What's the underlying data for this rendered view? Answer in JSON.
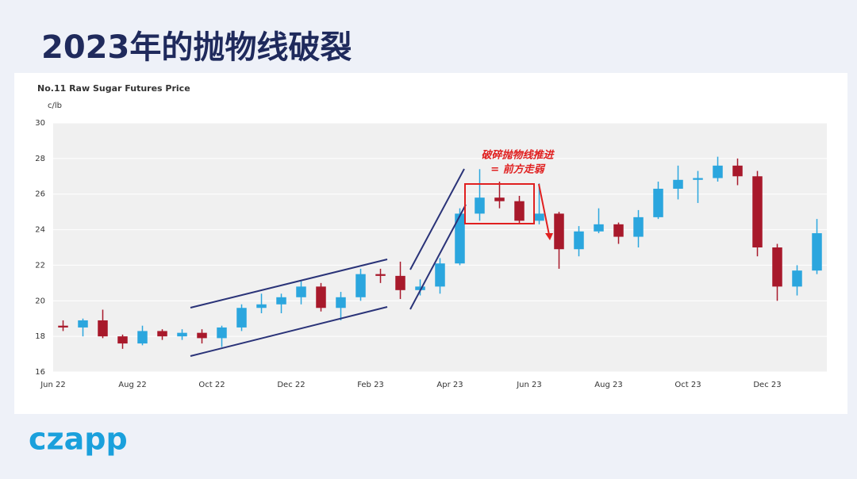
{
  "slide_title": "2023年的抛物线破裂",
  "logo": "czapp",
  "chart_data": {
    "type": "candlestick",
    "title": "No.11 Raw Sugar Futures Price",
    "y_label": "c/lb",
    "annotation": [
      "破碎抛物线推进",
      "= 前方走弱"
    ],
    "categories": [
      "Jun 22",
      null,
      null,
      null,
      "Aug 22",
      null,
      null,
      null,
      "Oct 22",
      null,
      null,
      null,
      "Dec 22",
      null,
      null,
      null,
      "Feb 23",
      null,
      null,
      null,
      "Apr 23",
      null,
      null,
      null,
      "Jun 23",
      null,
      null,
      null,
      "Aug 23",
      null,
      null,
      null,
      "Oct 23",
      null,
      null,
      null,
      "Dec 23",
      null,
      null
    ],
    "open": [
      18.6,
      18.5,
      18.9,
      18.0,
      17.6,
      18.3,
      18.0,
      18.2,
      17.9,
      18.5,
      19.6,
      19.8,
      20.2,
      20.8,
      19.6,
      20.2,
      21.5,
      21.4,
      20.6,
      20.8,
      22.1,
      24.9,
      25.8,
      25.6,
      24.5,
      24.9,
      22.9,
      23.9,
      24.3,
      23.6,
      24.7,
      26.3,
      26.8,
      26.9,
      27.6,
      27.0,
      23.0,
      20.8,
      21.7
    ],
    "high": [
      18.9,
      19.0,
      19.5,
      18.1,
      18.6,
      18.4,
      18.4,
      18.4,
      18.6,
      19.8,
      20.4,
      20.4,
      21.1,
      21.0,
      20.5,
      21.8,
      21.8,
      22.2,
      21.2,
      22.4,
      25.2,
      27.4,
      26.7,
      25.9,
      26.6,
      25.0,
      24.2,
      25.2,
      24.4,
      25.1,
      26.7,
      27.6,
      27.3,
      28.1,
      28.0,
      27.3,
      23.2,
      22.0,
      24.6
    ],
    "low": [
      18.3,
      18.0,
      17.9,
      17.3,
      17.5,
      17.8,
      17.8,
      17.6,
      17.4,
      18.3,
      19.3,
      19.3,
      19.8,
      19.4,
      18.9,
      20.0,
      21.0,
      20.1,
      20.3,
      20.4,
      22.0,
      24.5,
      25.2,
      24.3,
      24.3,
      21.8,
      22.5,
      23.8,
      23.2,
      23.0,
      24.6,
      25.7,
      25.5,
      26.7,
      26.5,
      22.5,
      20.0,
      20.3,
      21.5
    ],
    "close": [
      18.5,
      18.9,
      18.0,
      17.6,
      18.3,
      18.0,
      18.2,
      17.9,
      18.5,
      19.6,
      19.8,
      20.2,
      20.8,
      19.6,
      20.2,
      21.5,
      21.4,
      20.6,
      20.8,
      22.1,
      24.9,
      25.8,
      25.6,
      24.5,
      24.9,
      22.9,
      23.9,
      24.3,
      23.6,
      24.7,
      26.3,
      26.8,
      26.9,
      27.6,
      27.0,
      23.0,
      20.8,
      21.7,
      23.8
    ],
    "up_color": "#2ba6de",
    "down_color": "#a8192b",
    "ylim": [
      16,
      30
    ],
    "yticks": [
      16,
      18,
      20,
      22,
      24,
      26,
      28,
      30
    ],
    "grid": true
  }
}
